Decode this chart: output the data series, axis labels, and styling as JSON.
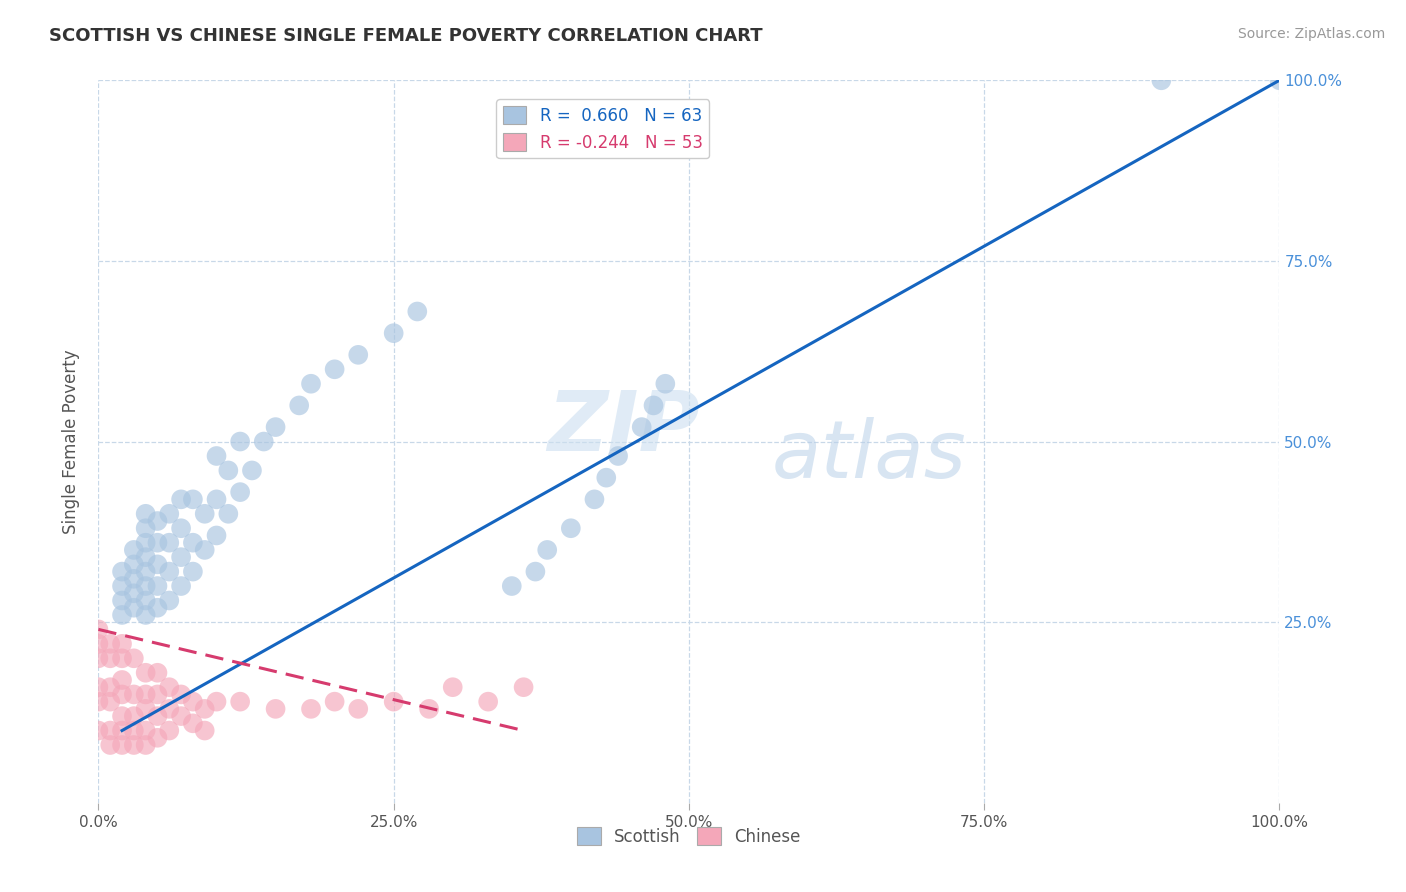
{
  "title": "SCOTTISH VS CHINESE SINGLE FEMALE POVERTY CORRELATION CHART",
  "source": "Source: ZipAtlas.com",
  "ylabel": "Single Female Poverty",
  "xlim": [
    0.0,
    1.0
  ],
  "ylim": [
    0.0,
    1.0
  ],
  "xtick_labels": [
    "0.0%",
    "25.0%",
    "50.0%",
    "75.0%",
    "100.0%"
  ],
  "xtick_vals": [
    0.0,
    0.25,
    0.5,
    0.75,
    1.0
  ],
  "ytick_labels": [
    "25.0%",
    "50.0%",
    "75.0%",
    "100.0%"
  ],
  "ytick_vals": [
    0.25,
    0.5,
    0.75,
    1.0
  ],
  "scottish_R": 0.66,
  "scottish_N": 63,
  "chinese_R": -0.244,
  "chinese_N": 53,
  "scottish_color": "#a8c4e0",
  "chinese_color": "#f4a7b9",
  "scottish_line_color": "#1565c0",
  "chinese_line_color": "#d63b6e",
  "watermark_zip": "ZIP",
  "watermark_atlas": "atlas",
  "grid_color": "#c8d8e8",
  "scottish_x": [
    0.02,
    0.02,
    0.02,
    0.02,
    0.03,
    0.03,
    0.03,
    0.03,
    0.03,
    0.04,
    0.04,
    0.04,
    0.04,
    0.04,
    0.04,
    0.04,
    0.04,
    0.05,
    0.05,
    0.05,
    0.05,
    0.05,
    0.06,
    0.06,
    0.06,
    0.06,
    0.07,
    0.07,
    0.07,
    0.07,
    0.08,
    0.08,
    0.08,
    0.09,
    0.09,
    0.1,
    0.1,
    0.1,
    0.11,
    0.11,
    0.12,
    0.12,
    0.13,
    0.14,
    0.15,
    0.17,
    0.18,
    0.2,
    0.22,
    0.25,
    0.27,
    0.35,
    0.37,
    0.38,
    0.4,
    0.42,
    0.43,
    0.44,
    0.46,
    0.47,
    0.48,
    0.9,
    1.0
  ],
  "scottish_y": [
    0.26,
    0.28,
    0.3,
    0.32,
    0.27,
    0.29,
    0.31,
    0.33,
    0.35,
    0.26,
    0.28,
    0.3,
    0.32,
    0.34,
    0.36,
    0.38,
    0.4,
    0.27,
    0.3,
    0.33,
    0.36,
    0.39,
    0.28,
    0.32,
    0.36,
    0.4,
    0.3,
    0.34,
    0.38,
    0.42,
    0.32,
    0.36,
    0.42,
    0.35,
    0.4,
    0.37,
    0.42,
    0.48,
    0.4,
    0.46,
    0.43,
    0.5,
    0.46,
    0.5,
    0.52,
    0.55,
    0.58,
    0.6,
    0.62,
    0.65,
    0.68,
    0.3,
    0.32,
    0.35,
    0.38,
    0.42,
    0.45,
    0.48,
    0.52,
    0.55,
    0.58,
    1.0,
    1.0
  ],
  "chinese_x": [
    0.0,
    0.0,
    0.0,
    0.0,
    0.0,
    0.0,
    0.01,
    0.01,
    0.01,
    0.01,
    0.01,
    0.01,
    0.02,
    0.02,
    0.02,
    0.02,
    0.02,
    0.02,
    0.02,
    0.03,
    0.03,
    0.03,
    0.03,
    0.03,
    0.04,
    0.04,
    0.04,
    0.04,
    0.04,
    0.05,
    0.05,
    0.05,
    0.05,
    0.06,
    0.06,
    0.06,
    0.07,
    0.07,
    0.08,
    0.08,
    0.09,
    0.09,
    0.1,
    0.12,
    0.15,
    0.18,
    0.2,
    0.22,
    0.25,
    0.28,
    0.3,
    0.33,
    0.36
  ],
  "chinese_y": [
    0.2,
    0.22,
    0.24,
    0.14,
    0.16,
    0.1,
    0.2,
    0.22,
    0.14,
    0.16,
    0.1,
    0.08,
    0.2,
    0.22,
    0.15,
    0.17,
    0.12,
    0.1,
    0.08,
    0.2,
    0.15,
    0.12,
    0.1,
    0.08,
    0.18,
    0.15,
    0.13,
    0.1,
    0.08,
    0.18,
    0.15,
    0.12,
    0.09,
    0.16,
    0.13,
    0.1,
    0.15,
    0.12,
    0.14,
    0.11,
    0.13,
    0.1,
    0.14,
    0.14,
    0.13,
    0.13,
    0.14,
    0.13,
    0.14,
    0.13,
    0.16,
    0.14,
    0.16
  ],
  "scottish_line_x": [
    0.02,
    1.0
  ],
  "scottish_line_y": [
    0.1,
    1.0
  ],
  "chinese_line_x": [
    0.0,
    0.36
  ],
  "chinese_line_y": [
    0.24,
    0.1
  ]
}
